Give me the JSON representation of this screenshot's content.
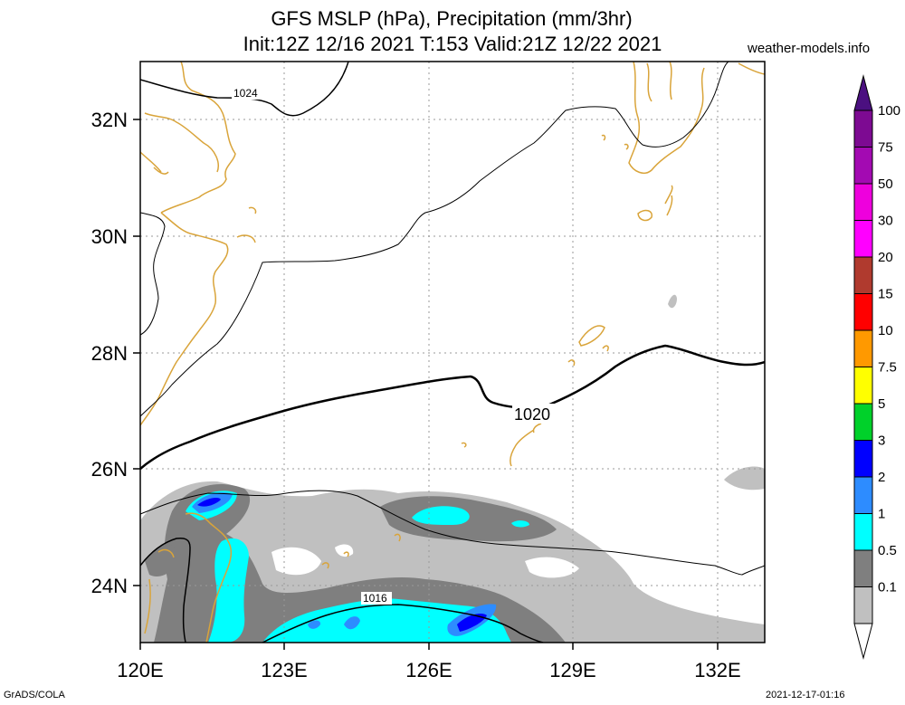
{
  "header": {
    "title_line1": "GFS MSLP (hPa), Precipitation (mm/3hr)",
    "title_line2": "Init:12Z 12/16 2021 T:153 Valid:21Z 12/22 2021",
    "site": "weather-models.info"
  },
  "footer": {
    "left": "GrADS/COLA",
    "right": "2021-12-17-01:16"
  },
  "map": {
    "lon_labels": [
      "120E",
      "123E",
      "126E",
      "129E",
      "132E"
    ],
    "lat_labels": [
      "32N",
      "30N",
      "28N",
      "26N",
      "24N"
    ],
    "extent": {
      "lon_min": 120,
      "lon_max": 133,
      "lat_min": 23,
      "lat_max": 33
    },
    "isobar_labels": [
      "1024",
      "1020",
      "1016"
    ],
    "colors": {
      "coast": "#d9a43a",
      "isobar": "#000000",
      "grid": "#9a9a9a"
    }
  },
  "legend": {
    "labels": [
      "100",
      "75",
      "50",
      "30",
      "20",
      "15",
      "10",
      "7.5",
      "5",
      "3",
      "2",
      "1",
      "0.5",
      "0.1"
    ],
    "colors": [
      "#7d0a92",
      "#a30ab2",
      "#ee00dd",
      "#ff00ff",
      "#b03a2e",
      "#ff0000",
      "#ff9900",
      "#ffff00",
      "#00d12a",
      "#0000ff",
      "#2d8cff",
      "#00ffff",
      "#7f7f7f",
      "#c0c0c0"
    ],
    "top_color": "#4b1080"
  }
}
